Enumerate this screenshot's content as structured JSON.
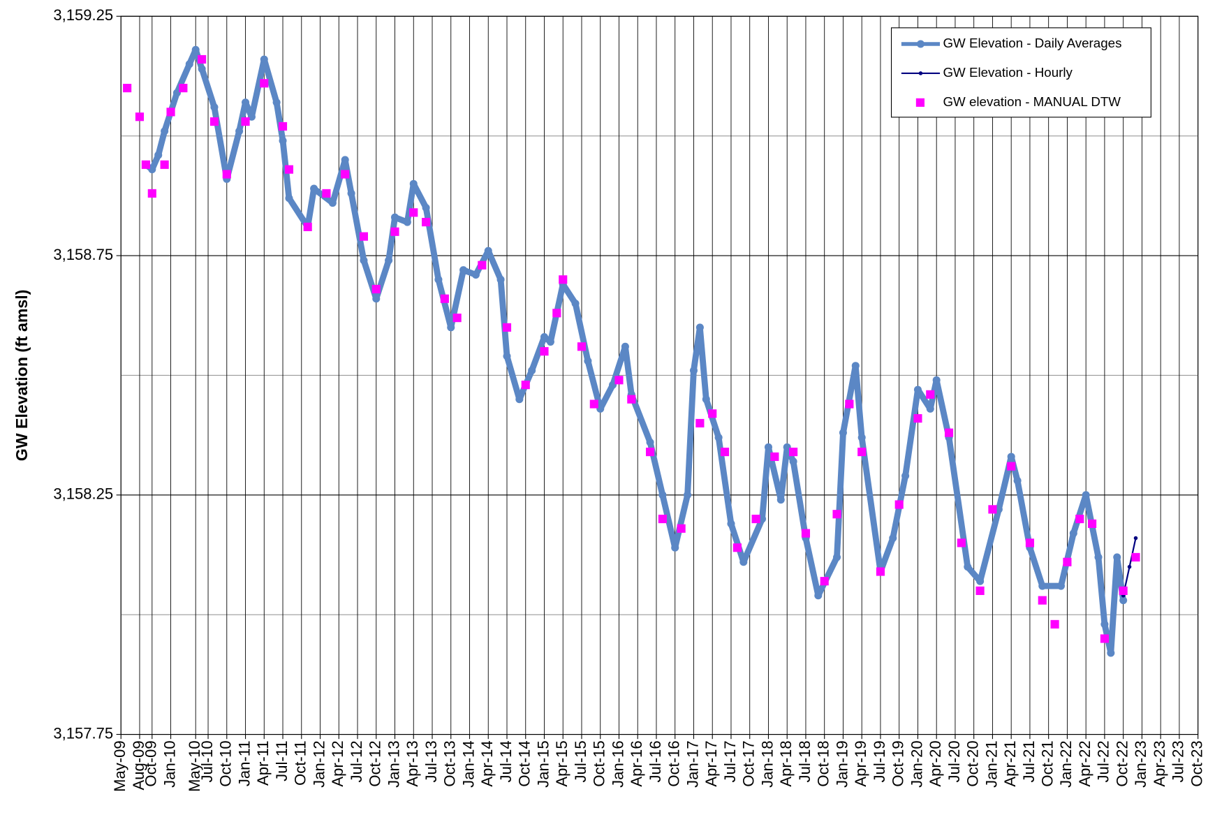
{
  "chart_data": {
    "type": "line",
    "y_label": "GW Elevation (ft amsl)",
    "legend": "upper right",
    "grid": true,
    "ylim": [
      3157.75,
      3159.25
    ],
    "yticks": [
      {
        "value": 3157.75,
        "label": "3,157.75"
      },
      {
        "value": 3158.25,
        "label": "3,158.25"
      },
      {
        "value": 3158.75,
        "label": "3,158.75"
      },
      {
        "value": 3159.25,
        "label": "3,159.25"
      }
    ],
    "minor_yticks": [
      3158.0,
      3158.5,
      3159.0
    ],
    "xlim": [
      "2009-05",
      "2023-10"
    ],
    "xticks": [
      {
        "value": "2009-05",
        "label": "May-09"
      },
      {
        "value": "2009-08",
        "label": "Aug-09"
      },
      {
        "value": "2009-10",
        "label": "Oct-09"
      },
      {
        "value": "2010-01",
        "label": "Jan-10"
      },
      {
        "value": "2010-05",
        "label": "May-10"
      },
      {
        "value": "2010-07",
        "label": "Jul-10"
      },
      {
        "value": "2010-10",
        "label": "Oct-10"
      },
      {
        "value": "2011-01",
        "label": "Jan-11"
      },
      {
        "value": "2011-04",
        "label": "Apr-11"
      },
      {
        "value": "2011-07",
        "label": "Jul-11"
      },
      {
        "value": "2011-10",
        "label": "Oct-11"
      },
      {
        "value": "2012-01",
        "label": "Jan-12"
      },
      {
        "value": "2012-04",
        "label": "Apr-12"
      },
      {
        "value": "2012-07",
        "label": "Jul-12"
      },
      {
        "value": "2012-10",
        "label": "Oct-12"
      },
      {
        "value": "2013-01",
        "label": "Jan-13"
      },
      {
        "value": "2013-04",
        "label": "Apr-13"
      },
      {
        "value": "2013-07",
        "label": "Jul-13"
      },
      {
        "value": "2013-10",
        "label": "Oct-13"
      },
      {
        "value": "2014-01",
        "label": "Jan-14"
      },
      {
        "value": "2014-04",
        "label": "Apr-14"
      },
      {
        "value": "2014-07",
        "label": "Jul-14"
      },
      {
        "value": "2014-10",
        "label": "Oct-14"
      },
      {
        "value": "2015-01",
        "label": "Jan-15"
      },
      {
        "value": "2015-04",
        "label": "Apr-15"
      },
      {
        "value": "2015-07",
        "label": "Jul-15"
      },
      {
        "value": "2015-10",
        "label": "Oct-15"
      },
      {
        "value": "2016-01",
        "label": "Jan-16"
      },
      {
        "value": "2016-04",
        "label": "Apr-16"
      },
      {
        "value": "2016-07",
        "label": "Jul-16"
      },
      {
        "value": "2016-10",
        "label": "Oct-16"
      },
      {
        "value": "2017-01",
        "label": "Jan-17"
      },
      {
        "value": "2017-04",
        "label": "Apr-17"
      },
      {
        "value": "2017-07",
        "label": "Jul-17"
      },
      {
        "value": "2017-10",
        "label": "Oct-17"
      },
      {
        "value": "2018-01",
        "label": "Jan-18"
      },
      {
        "value": "2018-04",
        "label": "Apr-18"
      },
      {
        "value": "2018-07",
        "label": "Jul-18"
      },
      {
        "value": "2018-10",
        "label": "Oct-18"
      },
      {
        "value": "2019-01",
        "label": "Jan-19"
      },
      {
        "value": "2019-04",
        "label": "Apr-19"
      },
      {
        "value": "2019-07",
        "label": "Jul-19"
      },
      {
        "value": "2019-10",
        "label": "Oct-19"
      },
      {
        "value": "2020-01",
        "label": "Jan-20"
      },
      {
        "value": "2020-04",
        "label": "Apr-20"
      },
      {
        "value": "2020-07",
        "label": "Jul-20"
      },
      {
        "value": "2020-10",
        "label": "Oct-20"
      },
      {
        "value": "2021-01",
        "label": "Jan-21"
      },
      {
        "value": "2021-04",
        "label": "Apr-21"
      },
      {
        "value": "2021-07",
        "label": "Jul-21"
      },
      {
        "value": "2021-10",
        "label": "Oct-21"
      },
      {
        "value": "2022-01",
        "label": "Jan-22"
      },
      {
        "value": "2022-04",
        "label": "Apr-22"
      },
      {
        "value": "2022-07",
        "label": "Jul-22"
      },
      {
        "value": "2022-10",
        "label": "Oct-22"
      },
      {
        "value": "2023-01",
        "label": "Jan-23"
      },
      {
        "value": "2023-04",
        "label": "Apr-23"
      },
      {
        "value": "2023-07",
        "label": "Jul-23"
      },
      {
        "value": "2023-10",
        "label": "Oct-23"
      }
    ],
    "series": [
      {
        "name": "GW Elevation - Daily Averages",
        "color": "#5b87c5",
        "style": "line-marker",
        "x": [
          "2009-09",
          "2009-10",
          "2009-11",
          "2009-12",
          "2010-02",
          "2010-04",
          "2010-05",
          "2010-06",
          "2010-08",
          "2010-10",
          "2010-12",
          "2011-01",
          "2011-02",
          "2011-04",
          "2011-06",
          "2011-07",
          "2011-08",
          "2011-11",
          "2011-12",
          "2012-03",
          "2012-05",
          "2012-06",
          "2012-08",
          "2012-10",
          "2012-12",
          "2013-01",
          "2013-03",
          "2013-04",
          "2013-06",
          "2013-08",
          "2013-10",
          "2013-12",
          "2014-02",
          "2014-04",
          "2014-06",
          "2014-07",
          "2014-09",
          "2014-11",
          "2015-01",
          "2015-02",
          "2015-04",
          "2015-06",
          "2015-08",
          "2015-10",
          "2015-12",
          "2016-02",
          "2016-03",
          "2016-06",
          "2016-08",
          "2016-10",
          "2016-12",
          "2017-01",
          "2017-02",
          "2017-03",
          "2017-05",
          "2017-07",
          "2017-09",
          "2017-12",
          "2018-01",
          "2018-03",
          "2018-04",
          "2018-05",
          "2018-07",
          "2018-09",
          "2018-12",
          "2019-01",
          "2019-03",
          "2019-04",
          "2019-07",
          "2019-09",
          "2019-11",
          "2020-01",
          "2020-03",
          "2020-04",
          "2020-06",
          "2020-09",
          "2020-11",
          "2021-02",
          "2021-04",
          "2021-05",
          "2021-07",
          "2021-09",
          "2021-12",
          "2022-02",
          "2022-04",
          "2022-06",
          "2022-07",
          "2022-08",
          "2022-09",
          "2022-10"
        ],
        "values": [
          3158.94,
          3158.93,
          3158.96,
          3159.01,
          3159.09,
          3159.15,
          3159.18,
          3159.14,
          3159.06,
          3158.91,
          3159.01,
          3159.07,
          3159.04,
          3159.16,
          3159.07,
          3158.99,
          3158.87,
          3158.81,
          3158.89,
          3158.86,
          3158.95,
          3158.88,
          3158.74,
          3158.66,
          3158.74,
          3158.83,
          3158.82,
          3158.9,
          3158.85,
          3158.7,
          3158.6,
          3158.72,
          3158.71,
          3158.76,
          3158.7,
          3158.54,
          3158.45,
          3158.51,
          3158.58,
          3158.57,
          3158.69,
          3158.65,
          3158.53,
          3158.43,
          3158.48,
          3158.56,
          3158.46,
          3158.36,
          3158.25,
          3158.14,
          3158.25,
          3158.51,
          3158.6,
          3158.45,
          3158.37,
          3158.19,
          3158.11,
          3158.2,
          3158.35,
          3158.24,
          3158.35,
          3158.32,
          3158.16,
          3158.04,
          3158.12,
          3158.38,
          3158.52,
          3158.37,
          3158.09,
          3158.16,
          3158.29,
          3158.47,
          3158.43,
          3158.49,
          3158.37,
          3158.1,
          3158.07,
          3158.22,
          3158.33,
          3158.28,
          3158.14,
          3158.06,
          3158.06,
          3158.17,
          3158.25,
          3158.12,
          3157.98,
          3157.92,
          3158.12,
          3158.03
        ]
      },
      {
        "name": "GW Elevation - Hourly",
        "color": "#000080",
        "style": "thin-line",
        "x": [
          "2022-10",
          "2022-11",
          "2022-12"
        ],
        "values": [
          3158.04,
          3158.1,
          3158.16
        ]
      },
      {
        "name": "GW elevation - MANUAL DTW",
        "color": "#ff00ff",
        "style": "square",
        "x": [
          "2009-06",
          "2009-08",
          "2009-09",
          "2009-10",
          "2009-12",
          "2010-01",
          "2010-03",
          "2010-06",
          "2010-08",
          "2010-10",
          "2011-01",
          "2011-04",
          "2011-07",
          "2011-08",
          "2011-11",
          "2012-02",
          "2012-05",
          "2012-08",
          "2012-10",
          "2013-01",
          "2013-04",
          "2013-06",
          "2013-09",
          "2013-11",
          "2014-03",
          "2014-07",
          "2014-10",
          "2015-01",
          "2015-03",
          "2015-04",
          "2015-07",
          "2015-09",
          "2016-01",
          "2016-03",
          "2016-06",
          "2016-08",
          "2016-11",
          "2017-02",
          "2017-04",
          "2017-06",
          "2017-08",
          "2017-11",
          "2018-02",
          "2018-05",
          "2018-07",
          "2018-10",
          "2018-12",
          "2019-02",
          "2019-04",
          "2019-07",
          "2019-10",
          "2020-01",
          "2020-03",
          "2020-06",
          "2020-08",
          "2020-11",
          "2021-01",
          "2021-04",
          "2021-07",
          "2021-09",
          "2021-11",
          "2022-01",
          "2022-03",
          "2022-05",
          "2022-07",
          "2022-10",
          "2022-12"
        ],
        "values": [
          3159.1,
          3159.04,
          3158.94,
          3158.88,
          3158.94,
          3159.05,
          3159.1,
          3159.16,
          3159.03,
          3158.92,
          3159.03,
          3159.11,
          3159.02,
          3158.93,
          3158.81,
          3158.88,
          3158.92,
          3158.79,
          3158.68,
          3158.8,
          3158.84,
          3158.82,
          3158.66,
          3158.62,
          3158.73,
          3158.6,
          3158.48,
          3158.55,
          3158.63,
          3158.7,
          3158.56,
          3158.44,
          3158.49,
          3158.45,
          3158.34,
          3158.2,
          3158.18,
          3158.4,
          3158.42,
          3158.34,
          3158.14,
          3158.2,
          3158.33,
          3158.34,
          3158.17,
          3158.07,
          3158.21,
          3158.44,
          3158.34,
          3158.09,
          3158.23,
          3158.41,
          3158.46,
          3158.38,
          3158.15,
          3158.05,
          3158.22,
          3158.31,
          3158.15,
          3158.03,
          3157.98,
          3158.11,
          3158.2,
          3158.19,
          3157.95,
          3158.05,
          3158.12
        ]
      }
    ]
  }
}
